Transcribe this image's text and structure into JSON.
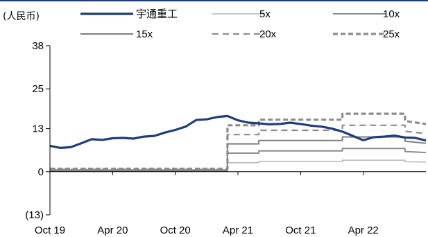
{
  "chart_data": {
    "type": "line",
    "unit_label": "(人民币)",
    "y_ticks": [
      "38",
      "25",
      "13",
      "0",
      "(13)"
    ],
    "y_tick_values": [
      38,
      25,
      13,
      0,
      -13
    ],
    "ylim": [
      -13,
      38
    ],
    "x_ticks": [
      "Oct 19",
      "Apr 20",
      "Oct 20",
      "Apr 21",
      "Oct 21",
      "Apr 22"
    ],
    "x_tick_values": [
      "2019-10",
      "2020-04",
      "2020-10",
      "2021-04",
      "2021-10",
      "2022-04"
    ],
    "xlim": [
      "2019-10",
      "2022-10"
    ],
    "legend_position": "top",
    "series": [
      {
        "name": "宇通重工",
        "color": "#1f3d7a",
        "style": "solid-thick",
        "x": [
          "2019-10",
          "2019-11",
          "2019-12",
          "2020-01",
          "2020-02",
          "2020-03",
          "2020-04",
          "2020-05",
          "2020-06",
          "2020-07",
          "2020-08",
          "2020-09",
          "2020-10",
          "2020-11",
          "2020-12",
          "2021-01",
          "2021-02",
          "2021-03",
          "2021-04",
          "2021-05",
          "2021-06",
          "2021-07",
          "2021-08",
          "2021-09",
          "2021-10",
          "2021-11",
          "2021-12",
          "2022-01",
          "2022-02",
          "2022-03",
          "2022-04",
          "2022-05",
          "2022-06",
          "2022-07",
          "2022-08",
          "2022-09",
          "2022-10"
        ],
        "values": [
          7.8,
          7.2,
          7.4,
          8.6,
          9.8,
          9.6,
          10.1,
          10.2,
          10.0,
          10.6,
          10.8,
          11.8,
          12.6,
          13.6,
          15.6,
          15.8,
          16.5,
          16.8,
          15.5,
          14.8,
          14.6,
          14.3,
          14.4,
          14.8,
          14.4,
          13.9,
          13.6,
          13.0,
          12.1,
          10.8,
          9.5,
          10.4,
          10.6,
          10.9,
          10.3,
          10.2,
          9.4
        ]
      },
      {
        "name": "5x",
        "color": "#a6a6a6",
        "style": "solid-thin",
        "x": [
          "2019-10",
          "2021-03",
          "2021-03",
          "2021-06",
          "2021-06",
          "2022-02",
          "2022-02",
          "2022-08",
          "2022-08",
          "2022-10"
        ],
        "values": [
          0.15,
          0.15,
          2.7,
          2.7,
          3.1,
          3.1,
          3.5,
          3.5,
          3.0,
          2.9
        ]
      },
      {
        "name": "10x",
        "color": "#8c8c8c",
        "style": "solid-medium",
        "x": [
          "2019-10",
          "2021-03",
          "2021-03",
          "2021-06",
          "2021-06",
          "2022-02",
          "2022-02",
          "2022-08",
          "2022-08",
          "2022-10"
        ],
        "values": [
          0.3,
          0.3,
          5.6,
          5.6,
          6.3,
          6.3,
          7.0,
          7.0,
          6.1,
          5.8
        ]
      },
      {
        "name": "15x",
        "color": "#7f7f7f",
        "style": "solid-medium",
        "x": [
          "2019-10",
          "2021-03",
          "2021-03",
          "2021-06",
          "2021-06",
          "2022-02",
          "2022-02",
          "2022-08",
          "2022-08",
          "2022-10"
        ],
        "values": [
          0.5,
          0.5,
          8.4,
          8.4,
          9.4,
          9.4,
          10.5,
          10.5,
          9.2,
          8.6
        ]
      },
      {
        "name": "20x",
        "color": "#8c8c8c",
        "style": "dashed",
        "x": [
          "2019-10",
          "2021-03",
          "2021-03",
          "2021-06",
          "2021-06",
          "2022-02",
          "2022-02",
          "2022-08",
          "2022-08",
          "2022-10"
        ],
        "values": [
          0.7,
          0.7,
          11.2,
          11.2,
          12.5,
          12.5,
          14.0,
          14.0,
          12.2,
          11.5
        ]
      },
      {
        "name": "25x",
        "color": "#8c8c8c",
        "style": "dashed-thick",
        "x": [
          "2019-10",
          "2021-03",
          "2021-03",
          "2021-06",
          "2021-06",
          "2022-02",
          "2022-02",
          "2022-08",
          "2022-08",
          "2022-10"
        ],
        "values": [
          0.9,
          0.9,
          14.0,
          14.0,
          15.7,
          15.7,
          17.5,
          17.5,
          15.3,
          14.4
        ]
      }
    ]
  }
}
